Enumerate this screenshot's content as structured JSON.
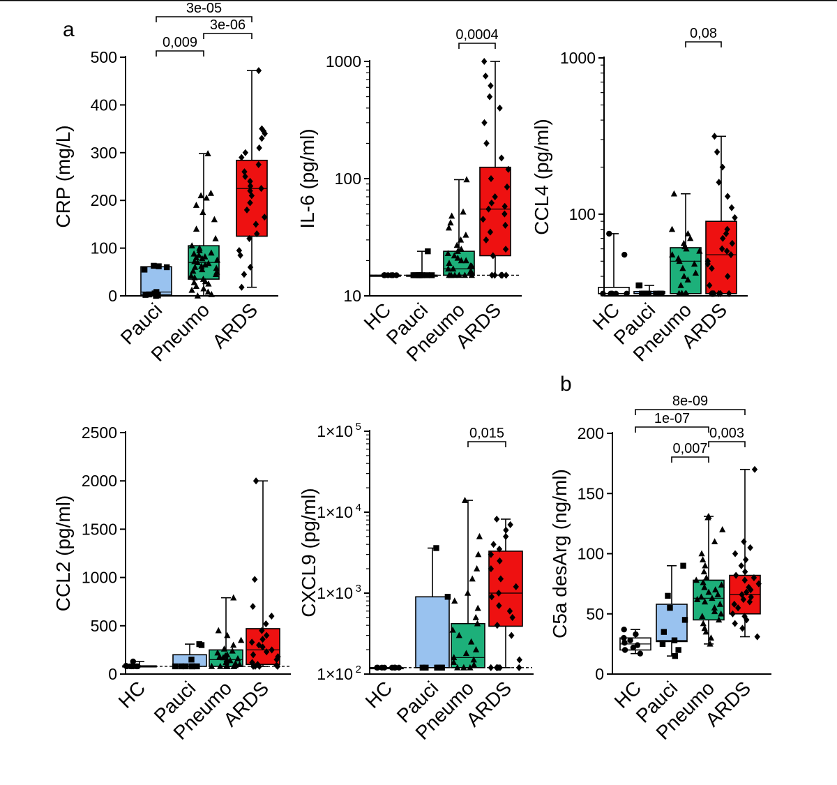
{
  "panel_labels": {
    "a": "a",
    "b": "b"
  },
  "colors": {
    "HC": "#ffffff",
    "Pauci": "#99c2ef",
    "Pneumo": "#1db07a",
    "ARDS": "#ee1111"
  },
  "chart_data": [
    {
      "id": "crp",
      "type": "box",
      "scale": "linear",
      "ylabel": "CRP (mg/L)",
      "ylim": [
        0,
        500
      ],
      "ticks": [
        0,
        100,
        200,
        300,
        400,
        500
      ],
      "tick_labels": [
        "0",
        "100",
        "200",
        "300",
        "400",
        "500"
      ],
      "categories": [
        "Pauci",
        "Pneumo",
        "ARDS"
      ],
      "marker": {
        "Pauci": "square",
        "Pneumo": "triangle",
        "ARDS": "diamond"
      },
      "boxes": [
        {
          "group": "Pauci",
          "min": 0,
          "q1": 2,
          "median": 8,
          "q3": 61,
          "max": 63
        },
        {
          "group": "Pneumo",
          "min": 0,
          "q1": 35,
          "median": 70,
          "q3": 105,
          "max": 298
        },
        {
          "group": "ARDS",
          "min": 18,
          "q1": 125,
          "median": 225,
          "q3": 284,
          "max": 472
        }
      ],
      "points": {
        "Pauci": [
          0,
          1,
          2,
          3,
          5,
          8,
          55,
          60,
          62,
          63
        ],
        "Pneumo": [
          0,
          3,
          8,
          12,
          15,
          20,
          25,
          28,
          30,
          35,
          38,
          42,
          45,
          50,
          52,
          55,
          58,
          60,
          62,
          65,
          68,
          70,
          72,
          75,
          78,
          80,
          82,
          85,
          88,
          90,
          95,
          100,
          105,
          120,
          140,
          160,
          175,
          190,
          205,
          210,
          215,
          298
        ],
        "ARDS": [
          18,
          45,
          60,
          85,
          95,
          120,
          130,
          150,
          165,
          180,
          195,
          210,
          220,
          225,
          230,
          240,
          250,
          260,
          275,
          290,
          300,
          310,
          330,
          340,
          345,
          350,
          472
        ]
      },
      "lloq": null,
      "brackets": [
        {
          "from": "Pauci",
          "to": "ARDS",
          "label": "3e-05"
        },
        {
          "from": "Pauci",
          "to": "Pneumo",
          "label": "0,009"
        },
        {
          "from": "Pneumo",
          "to": "ARDS",
          "label": "3e-06"
        }
      ]
    },
    {
      "id": "il6",
      "type": "box",
      "scale": "log",
      "ylabel": "IL-6 (pg/ml)",
      "ylim": [
        10,
        1000
      ],
      "ticks": [
        10,
        100,
        1000
      ],
      "tick_labels": [
        "10",
        "100",
        "1000"
      ],
      "categories": [
        "HC",
        "Pauci",
        "Pneumo",
        "ARDS"
      ],
      "marker": {
        "HC": "circle",
        "Pauci": "square",
        "Pneumo": "triangle",
        "ARDS": "diamond"
      },
      "boxes": [
        {
          "group": "HC",
          "min": 15,
          "q1": 15,
          "median": 15,
          "q3": 15,
          "max": 15
        },
        {
          "group": "Pauci",
          "min": 15,
          "q1": 15,
          "median": 15,
          "q3": 15,
          "max": 24
        },
        {
          "group": "Pneumo",
          "min": 15,
          "q1": 15,
          "median": 17,
          "q3": 24,
          "max": 98
        },
        {
          "group": "ARDS",
          "min": 15,
          "q1": 22,
          "median": 55,
          "q3": 125,
          "max": 1000
        }
      ],
      "points": {
        "HC": [
          15,
          15,
          15,
          15,
          15,
          15,
          15,
          15,
          15
        ],
        "Pauci": [
          15,
          15,
          15,
          15,
          15,
          15,
          15,
          15,
          24
        ],
        "Pneumo": [
          15,
          15,
          15,
          15,
          15,
          15,
          15,
          16,
          16,
          17,
          17,
          18,
          18,
          19,
          20,
          20,
          21,
          22,
          23,
          24,
          25,
          27,
          30,
          33,
          38,
          42,
          48,
          52,
          98
        ],
        "ARDS": [
          15,
          15,
          15,
          15,
          15,
          22,
          25,
          30,
          35,
          40,
          45,
          50,
          55,
          58,
          62,
          70,
          85,
          100,
          120,
          150,
          200,
          300,
          400,
          500,
          620,
          750,
          1000
        ]
      },
      "lloq": 15,
      "brackets": [
        {
          "from": "Pneumo",
          "to": "ARDS",
          "label": "0,0004"
        }
      ]
    },
    {
      "id": "ccl4",
      "type": "box",
      "scale": "log",
      "ylabel": "CCL4 (pg/ml)",
      "ylim": [
        30,
        1000
      ],
      "ticks": [
        100,
        1000
      ],
      "tick_labels": [
        "100",
        "1000"
      ],
      "categories": [
        "HC",
        "Pauci",
        "Pneumo",
        "ARDS"
      ],
      "marker": {
        "HC": "circle",
        "Pauci": "square",
        "Pneumo": "triangle",
        "ARDS": "diamond"
      },
      "boxes": [
        {
          "group": "HC",
          "min": 31,
          "q1": 31,
          "median": 31,
          "q3": 34,
          "max": 75
        },
        {
          "group": "Pauci",
          "min": 31,
          "q1": 31,
          "median": 31,
          "q3": 32,
          "max": 35
        },
        {
          "group": "Pneumo",
          "min": 31,
          "q1": 31,
          "median": 50,
          "q3": 61,
          "max": 135
        },
        {
          "group": "ARDS",
          "min": 31,
          "q1": 31,
          "median": 55,
          "q3": 90,
          "max": 315
        }
      ],
      "points": {
        "HC": [
          31,
          31,
          31,
          31,
          31,
          31,
          55,
          75
        ],
        "Pauci": [
          31,
          31,
          31,
          31,
          31,
          31,
          31,
          35,
          35
        ],
        "Pneumo": [
          31,
          31,
          31,
          31,
          31,
          31,
          35,
          38,
          40,
          42,
          45,
          48,
          50,
          52,
          55,
          58,
          60,
          62,
          65,
          70,
          75,
          80,
          135
        ],
        "ARDS": [
          31,
          31,
          31,
          31,
          31,
          31,
          35,
          40,
          45,
          48,
          50,
          55,
          58,
          60,
          65,
          70,
          75,
          80,
          95,
          110,
          130,
          160,
          200,
          250,
          315
        ]
      },
      "lloq": null,
      "brackets": [
        {
          "from": "Pneumo",
          "to": "ARDS",
          "label": "0,08"
        }
      ]
    },
    {
      "id": "ccl2",
      "type": "box",
      "scale": "linear",
      "ylabel": "CCL2 (pg/ml)",
      "ylim": [
        0,
        2500
      ],
      "ticks": [
        0,
        500,
        1000,
        1500,
        2000,
        2500
      ],
      "tick_labels": [
        "0",
        "500",
        "1000",
        "1500",
        "2000",
        "2500"
      ],
      "categories": [
        "HC",
        "Pauci",
        "Pneumo",
        "ARDS"
      ],
      "marker": {
        "HC": "circle",
        "Pauci": "square",
        "Pneumo": "triangle",
        "ARDS": "diamond"
      },
      "boxes": [
        {
          "group": "HC",
          "min": 80,
          "q1": 80,
          "median": 80,
          "q3": 85,
          "max": 130
        },
        {
          "group": "Pauci",
          "min": 80,
          "q1": 80,
          "median": 80,
          "q3": 200,
          "max": 310
        },
        {
          "group": "Pneumo",
          "min": 80,
          "q1": 80,
          "median": 150,
          "q3": 250,
          "max": 790
        },
        {
          "group": "ARDS",
          "min": 80,
          "q1": 100,
          "median": 250,
          "q3": 470,
          "max": 2000
        }
      ],
      "points": {
        "HC": [
          80,
          80,
          80,
          80,
          80,
          80,
          80,
          85,
          130
        ],
        "Pauci": [
          80,
          80,
          80,
          80,
          80,
          80,
          150,
          300,
          310
        ],
        "Pneumo": [
          80,
          80,
          80,
          80,
          80,
          80,
          90,
          100,
          110,
          120,
          130,
          140,
          150,
          160,
          170,
          180,
          190,
          200,
          220,
          240,
          260,
          300,
          350,
          400,
          450,
          790
        ],
        "ARDS": [
          80,
          80,
          80,
          80,
          90,
          100,
          120,
          150,
          180,
          200,
          230,
          250,
          280,
          300,
          330,
          360,
          400,
          450,
          520,
          600,
          700,
          980,
          2000
        ]
      },
      "lloq": 80,
      "brackets": []
    },
    {
      "id": "cxcl9",
      "type": "box",
      "scale": "log",
      "ylabel": "CXCL9 (pg/ml)",
      "ylim": [
        100,
        100000
      ],
      "ticks": [
        100,
        1000,
        10000,
        100000
      ],
      "tick_labels": [
        "1×10",
        "1×10",
        "1×10",
        "1×10"
      ],
      "tick_exponents": [
        "2",
        "3",
        "4",
        "5"
      ],
      "categories": [
        "HC",
        "Pauci",
        "Pneumo",
        "ARDS"
      ],
      "marker": {
        "HC": "circle",
        "Pauci": "square",
        "Pneumo": "triangle",
        "ARDS": "diamond"
      },
      "boxes": [
        {
          "group": "HC",
          "min": 120,
          "q1": 120,
          "median": 120,
          "q3": 120,
          "max": 120
        },
        {
          "group": "Pauci",
          "min": 120,
          "q1": 120,
          "median": 120,
          "q3": 900,
          "max": 3600
        },
        {
          "group": "Pneumo",
          "min": 120,
          "q1": 120,
          "median": 160,
          "q3": 420,
          "max": 14000
        },
        {
          "group": "ARDS",
          "min": 120,
          "q1": 390,
          "median": 1000,
          "q3": 3300,
          "max": 8200
        }
      ],
      "points": {
        "HC": [
          120,
          120,
          120,
          120,
          120,
          120,
          120,
          120,
          120
        ],
        "Pauci": [
          120,
          120,
          120,
          120,
          120,
          120,
          900,
          3600
        ],
        "Pneumo": [
          120,
          120,
          120,
          120,
          130,
          140,
          150,
          160,
          180,
          200,
          250,
          300,
          350,
          420,
          500,
          650,
          800,
          1000,
          1500,
          2000,
          3000,
          5000,
          14000
        ],
        "ARDS": [
          120,
          120,
          120,
          120,
          120,
          150,
          300,
          400,
          500,
          600,
          700,
          900,
          1000,
          1200,
          1500,
          2000,
          2500,
          3000,
          3500,
          4000,
          5000,
          6000,
          7000,
          8200
        ]
      },
      "lloq": 120,
      "brackets": [
        {
          "from": "Pneumo",
          "to": "ARDS",
          "label": "0,015"
        }
      ]
    },
    {
      "id": "c5a",
      "type": "box",
      "scale": "linear",
      "ylabel": "C5a desArg (ng/ml)",
      "ylim": [
        0,
        200
      ],
      "ticks": [
        0,
        50,
        100,
        150,
        200
      ],
      "tick_labels": [
        "0",
        "50",
        "100",
        "150",
        "200"
      ],
      "categories": [
        "HC",
        "Pauci",
        "Pneumo",
        "ARDS"
      ],
      "marker": {
        "HC": "circle",
        "Pauci": "square",
        "Pneumo": "triangle",
        "ARDS": "diamond"
      },
      "boxes": [
        {
          "group": "HC",
          "min": 17,
          "q1": 20,
          "median": 25,
          "q3": 30,
          "max": 37
        },
        {
          "group": "Pauci",
          "min": 15,
          "q1": 27,
          "median": 28,
          "q3": 58,
          "max": 90
        },
        {
          "group": "Pneumo",
          "min": 25,
          "q1": 45,
          "median": 63,
          "q3": 78,
          "max": 131
        },
        {
          "group": "ARDS",
          "min": 31,
          "q1": 50,
          "median": 66,
          "q3": 82,
          "max": 170
        }
      ],
      "points": {
        "HC": [
          17,
          20,
          22,
          24,
          26,
          28,
          30,
          33,
          37
        ],
        "Pauci": [
          15,
          20,
          25,
          28,
          35,
          45,
          55,
          65,
          90
        ],
        "Pneumo": [
          25,
          30,
          35,
          38,
          42,
          45,
          48,
          50,
          52,
          55,
          58,
          60,
          62,
          63,
          64,
          66,
          68,
          70,
          72,
          74,
          76,
          78,
          80,
          85,
          90,
          95,
          100,
          110,
          120,
          130,
          131
        ],
        "ARDS": [
          31,
          38,
          42,
          45,
          48,
          50,
          55,
          58,
          60,
          62,
          64,
          66,
          68,
          70,
          72,
          75,
          78,
          80,
          82,
          85,
          90,
          95,
          100,
          105,
          110,
          170
        ]
      },
      "lloq": null,
      "brackets": [
        {
          "from": "HC",
          "to": "ARDS",
          "label": "8e-09"
        },
        {
          "from": "HC",
          "to": "Pneumo",
          "label": "1e-07"
        },
        {
          "from": "Pauci",
          "to": "Pneumo",
          "label": "0,007"
        },
        {
          "from": "Pneumo",
          "to": "ARDS",
          "label": "0,003"
        }
      ]
    }
  ]
}
